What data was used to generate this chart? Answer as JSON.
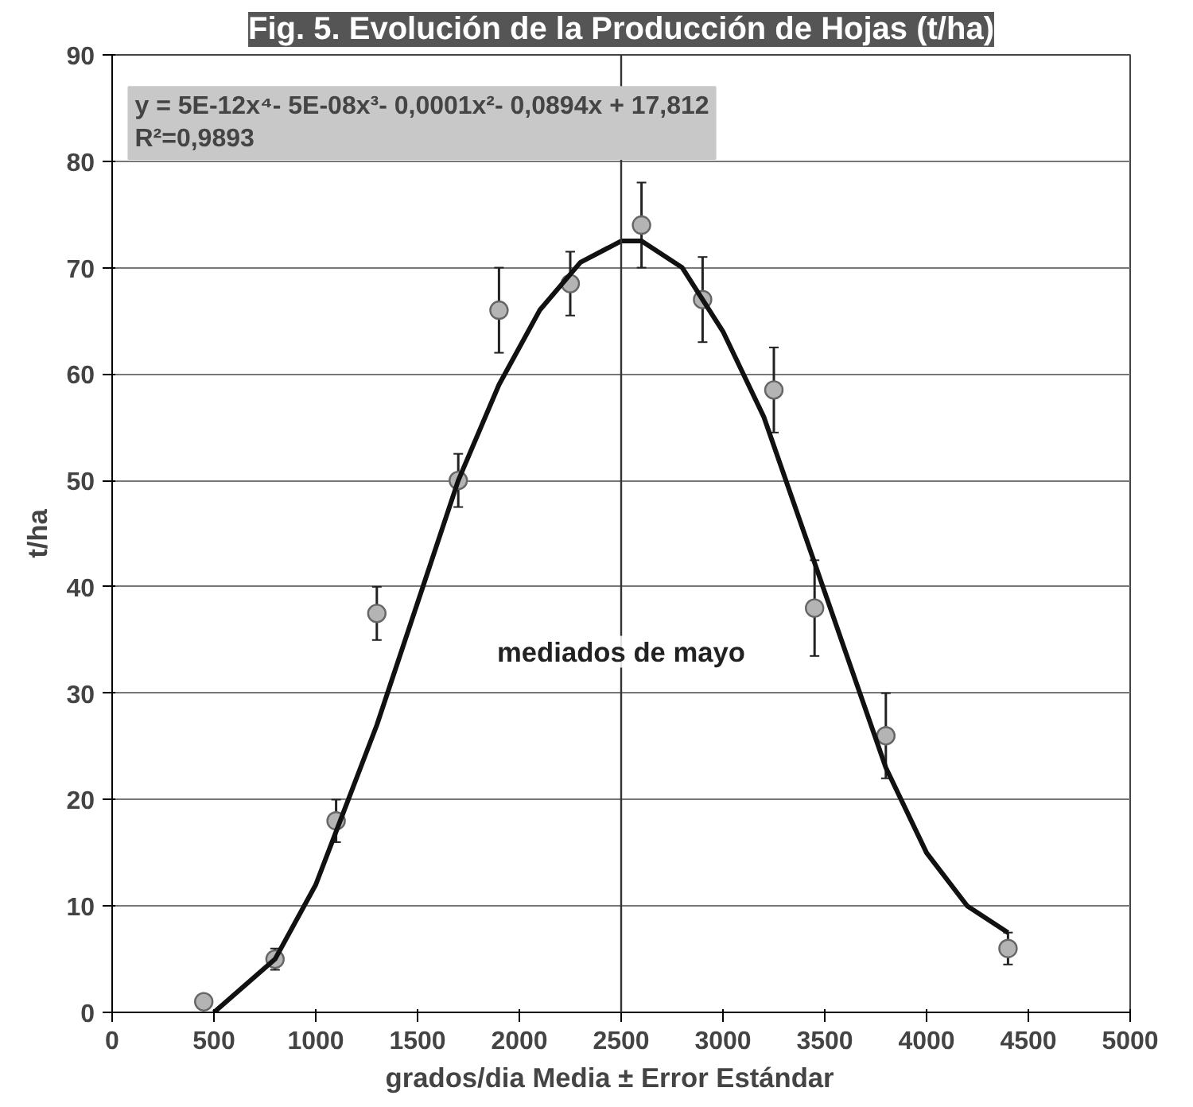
{
  "chart_data": {
    "type": "scatter",
    "title": "Fig. 5. Evolución de la Producción de Hojas (t/ha)",
    "xlabel": "grados/dia    Media ± Error Estándar",
    "ylabel": "t/ha",
    "annotations": [
      "y = 5E-12x⁴- 5E-08x³- 0,0001x²- 0,0894x + 17,812\nR²=0,9893"
    ],
    "series": [
      {
        "color": "#b4b4b4",
        "marker": "circle",
        "x": [
          450,
          800,
          1100,
          1300,
          1700,
          1900,
          2250,
          2600,
          2900,
          3250,
          3450,
          3800,
          4400
        ],
        "values": [
          1,
          5,
          18,
          37.5,
          50,
          66,
          68.5,
          74,
          67,
          58.5,
          38,
          26,
          6
        ],
        "errors": [
          null,
          1,
          2,
          2.5,
          2.5,
          4,
          3,
          4,
          4,
          4,
          4.5,
          4,
          1.5
        ]
      },
      {
        "type": "line",
        "color": "#111111",
        "line_style": "solid",
        "x": [
          500,
          800,
          1000,
          1100,
          1300,
          1500,
          1700,
          1900,
          2100,
          2300,
          2500,
          2600,
          2800,
          3000,
          3200,
          3400,
          3600,
          3800,
          4000,
          4200,
          4400
        ],
        "values": [
          0,
          5,
          12,
          17,
          27,
          38.5,
          50,
          59,
          66,
          70.5,
          72.5,
          72.5,
          70,
          64,
          56,
          45,
          34,
          23,
          15,
          10,
          7.5
        ]
      }
    ],
    "ref_lines": [
      {
        "axis": "x",
        "value": 2500,
        "label": "mediados de mayo",
        "color": "#333333"
      }
    ],
    "xlim": [
      0,
      5000
    ],
    "xticks": [
      0,
      500,
      1000,
      1500,
      2000,
      2500,
      3000,
      3500,
      4000,
      4500,
      5000
    ],
    "ylim": [
      0,
      90
    ],
    "yticks": [
      0,
      10,
      20,
      30,
      40,
      50,
      60,
      70,
      80,
      90
    ],
    "grid": "y"
  }
}
